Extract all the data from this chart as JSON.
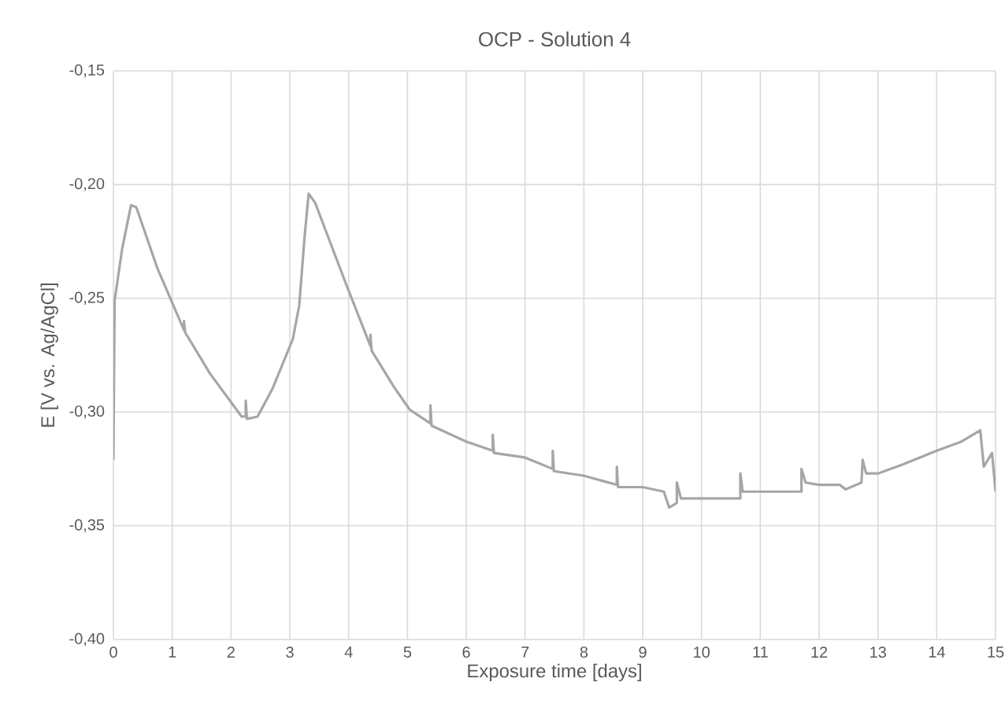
{
  "chart_data": {
    "type": "line",
    "title": "OCP - Solution 4",
    "xlabel": "Exposure time [days]",
    "ylabel": "E [V vs. Ag/AgCl]",
    "xlim": [
      0,
      15
    ],
    "ylim": [
      -0.4,
      -0.15
    ],
    "xticks": [
      0,
      1,
      2,
      3,
      4,
      5,
      6,
      7,
      8,
      9,
      10,
      11,
      12,
      13,
      14,
      15
    ],
    "yticks": [
      {
        "value": -0.4,
        "label": "-0,40"
      },
      {
        "value": -0.35,
        "label": "-0,35"
      },
      {
        "value": -0.3,
        "label": "-0,30"
      },
      {
        "value": -0.25,
        "label": "-0,25"
      },
      {
        "value": -0.2,
        "label": "-0,20"
      },
      {
        "value": -0.15,
        "label": "-0,15"
      }
    ],
    "grid": true,
    "series": [
      {
        "color": "#a6a6a6",
        "x": [
          0,
          0.02,
          0.15,
          0.3,
          0.39,
          0.75,
          1.2,
          1.2,
          1.22,
          1.64,
          2.18,
          2.25,
          2.25,
          2.27,
          2.45,
          2.7,
          3.05,
          3.16,
          3.25,
          3.32,
          3.43,
          3.96,
          4.37,
          4.37,
          4.39,
          4.77,
          5.04,
          5.39,
          5.39,
          5.41,
          6,
          6.45,
          6.45,
          6.47,
          7,
          7.47,
          7.47,
          7.49,
          8,
          8.56,
          8.56,
          8.58,
          9,
          9.36,
          9.45,
          9.58,
          9.58,
          9.65,
          10.1,
          10.66,
          10.66,
          10.7,
          11.7,
          11.7,
          11.77,
          12,
          12.35,
          12.45,
          12.72,
          12.74,
          12.8,
          13,
          13.43,
          14,
          14.42,
          14.74,
          14.8,
          14.94,
          15
        ],
        "values": [
          -0.321,
          -0.251,
          -0.228,
          -0.209,
          -0.21,
          -0.237,
          -0.264,
          -0.26,
          -0.265,
          -0.283,
          -0.302,
          -0.302,
          -0.295,
          -0.303,
          -0.302,
          -0.29,
          -0.268,
          -0.253,
          -0.223,
          -0.204,
          -0.208,
          -0.244,
          -0.271,
          -0.266,
          -0.273,
          -0.289,
          -0.299,
          -0.305,
          -0.297,
          -0.306,
          -0.313,
          -0.317,
          -0.31,
          -0.318,
          -0.32,
          -0.325,
          -0.317,
          -0.326,
          -0.328,
          -0.332,
          -0.324,
          -0.333,
          -0.333,
          -0.335,
          -0.342,
          -0.34,
          -0.331,
          -0.338,
          -0.338,
          -0.338,
          -0.327,
          -0.335,
          -0.335,
          -0.325,
          -0.331,
          -0.332,
          -0.332,
          -0.334,
          -0.331,
          -0.321,
          -0.327,
          -0.327,
          -0.323,
          -0.317,
          -0.313,
          -0.308,
          -0.324,
          -0.318,
          -0.335
        ]
      }
    ]
  }
}
